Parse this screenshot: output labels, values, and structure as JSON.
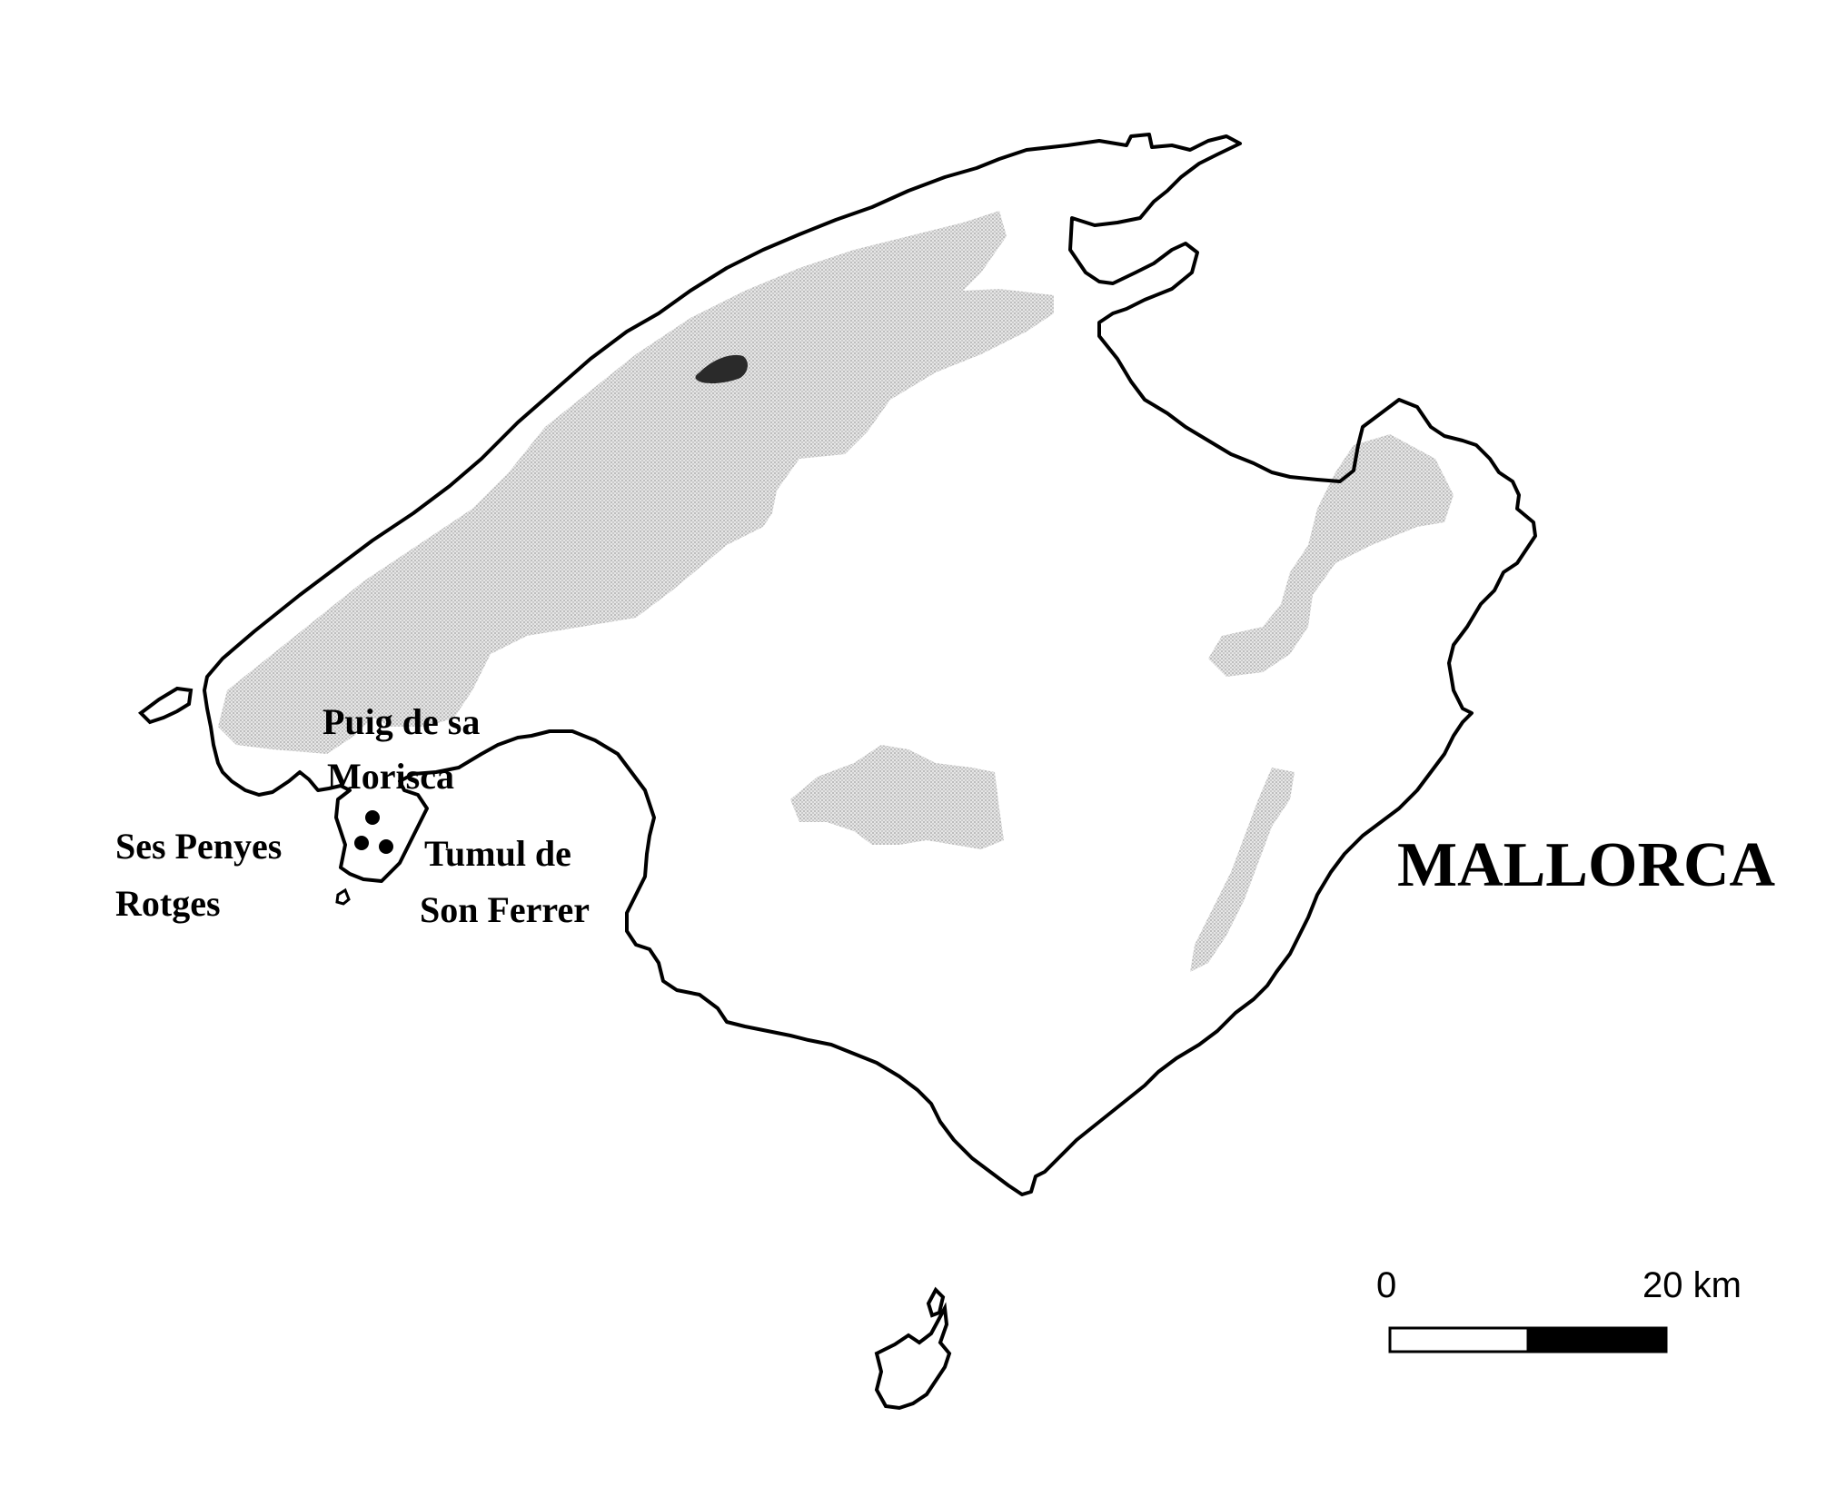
{
  "map": {
    "title": "MALLORCA",
    "sites": [
      {
        "label_lines": [
          "Puig de sa",
          "Morisca"
        ]
      },
      {
        "label_lines": [
          "Ses Penyes",
          "Rotges"
        ]
      },
      {
        "label_lines": [
          "Tumul de",
          "Son Ferrer"
        ]
      }
    ],
    "scale_bar": {
      "start_label": "0",
      "end_label": "20 km"
    },
    "colors": {
      "coastline": "#000000",
      "mountains": "#d4d4d4",
      "summit": "#2a2a2a",
      "site_marker": "#000000",
      "scale_light": "#ffffff",
      "scale_dark": "#000000"
    }
  }
}
